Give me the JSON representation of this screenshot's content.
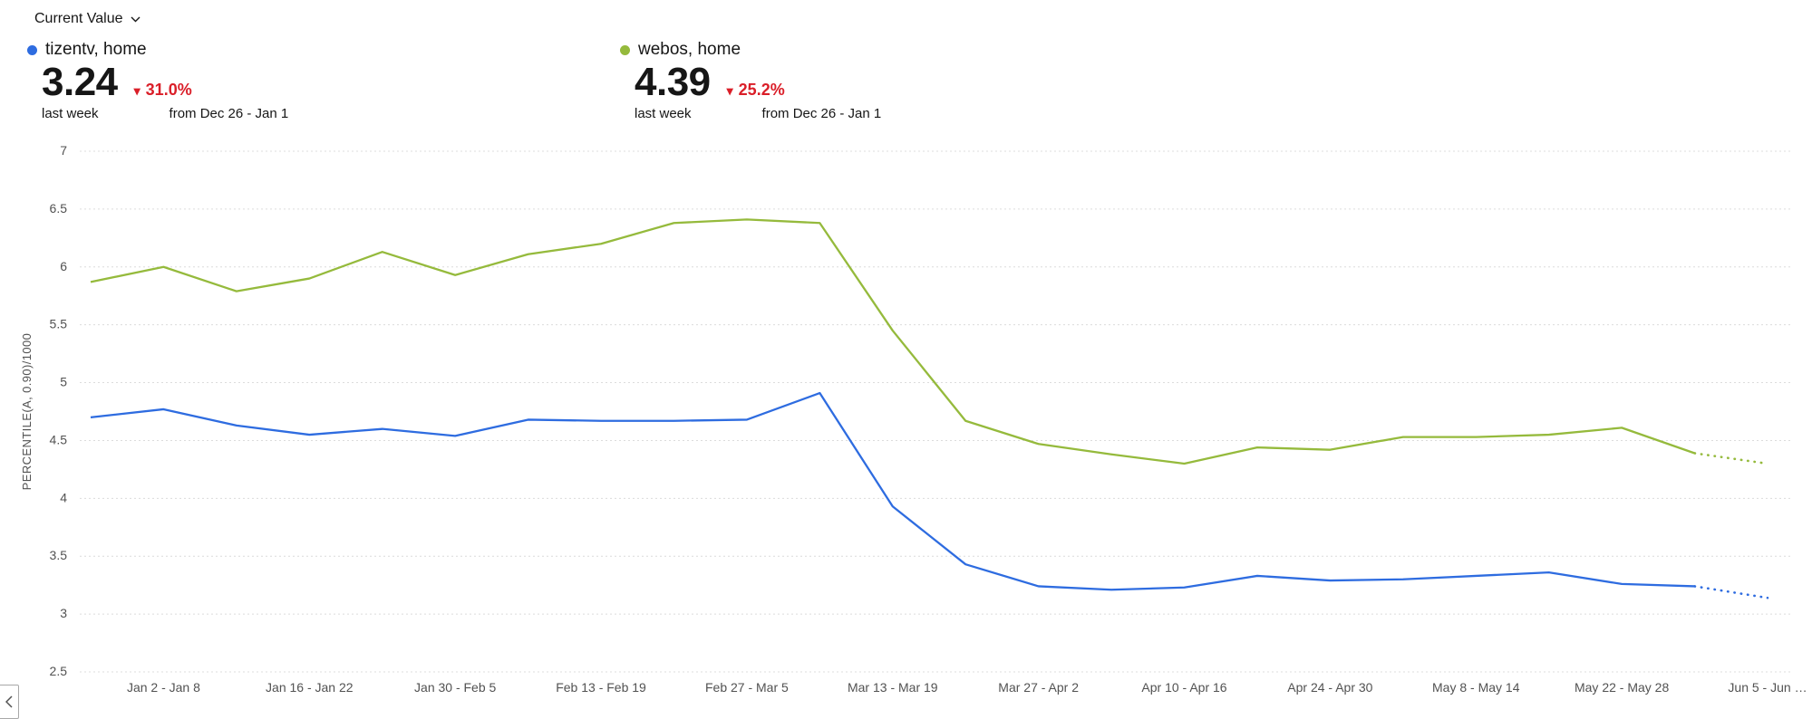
{
  "toolbar": {
    "metric_selector_label": "Current Value"
  },
  "kpis": [
    {
      "legend_label": "tizentv, home",
      "legend_color": "#2e6ce0",
      "value": "3.24",
      "change_arrow": "▾",
      "change_pct": "31.0%",
      "change_color": "#da1e28",
      "period_label": "last week",
      "comparison_label": "from Dec 26 - Jan 1"
    },
    {
      "legend_label": "webos, home",
      "legend_color": "#95ba3c",
      "value": "4.39",
      "change_arrow": "▾",
      "change_pct": "25.2%",
      "change_color": "#da1e28",
      "period_label": "last week",
      "comparison_label": "from Dec 26 - Jan 1"
    }
  ],
  "chart_data": {
    "type": "line",
    "title": "",
    "xlabel": "",
    "ylabel": "PERCENTILE(A, 0.90)/1000",
    "ylim": [
      2.5,
      7
    ],
    "grid": true,
    "legend_position": "top",
    "y_ticks": [
      "2.5",
      "3",
      "3.5",
      "4",
      "4.5",
      "5",
      "5.5",
      "6",
      "6.5",
      "7"
    ],
    "x_tick_labels": [
      "Jan 2 - Jan 8",
      "Jan 16 - Jan 22",
      "Jan 30 - Feb 5",
      "Feb 13 - Feb 19",
      "Feb 27 - Mar 5",
      "Mar 13 - Mar 19",
      "Mar 27 - Apr 2",
      "Apr 10 - Apr 16",
      "Apr 24 - Apr 30",
      "May 8 - May 14",
      "May 22 - May 28",
      "Jun 5 - Jun …"
    ],
    "first_tick_index": 1,
    "tick_every": 2,
    "projected_points": 1,
    "series": [
      {
        "name": "tizentv, home",
        "color": "#2e6ce0",
        "values": [
          4.7,
          4.77,
          4.63,
          4.55,
          4.6,
          4.54,
          4.68,
          4.67,
          4.67,
          4.68,
          4.91,
          3.93,
          3.43,
          3.24,
          3.21,
          3.23,
          3.33,
          3.29,
          3.3,
          3.33,
          3.36,
          3.26,
          3.24,
          3.14
        ]
      },
      {
        "name": "webos, home",
        "color": "#95ba3c",
        "values": [
          5.87,
          6.0,
          5.79,
          5.9,
          6.13,
          5.93,
          6.11,
          6.2,
          6.38,
          6.41,
          6.38,
          5.45,
          4.67,
          4.47,
          4.38,
          4.3,
          4.44,
          4.42,
          4.53,
          4.53,
          4.55,
          4.61,
          4.39,
          4.3
        ]
      }
    ]
  },
  "panel_toggle": {
    "icon": "chevron-left"
  }
}
